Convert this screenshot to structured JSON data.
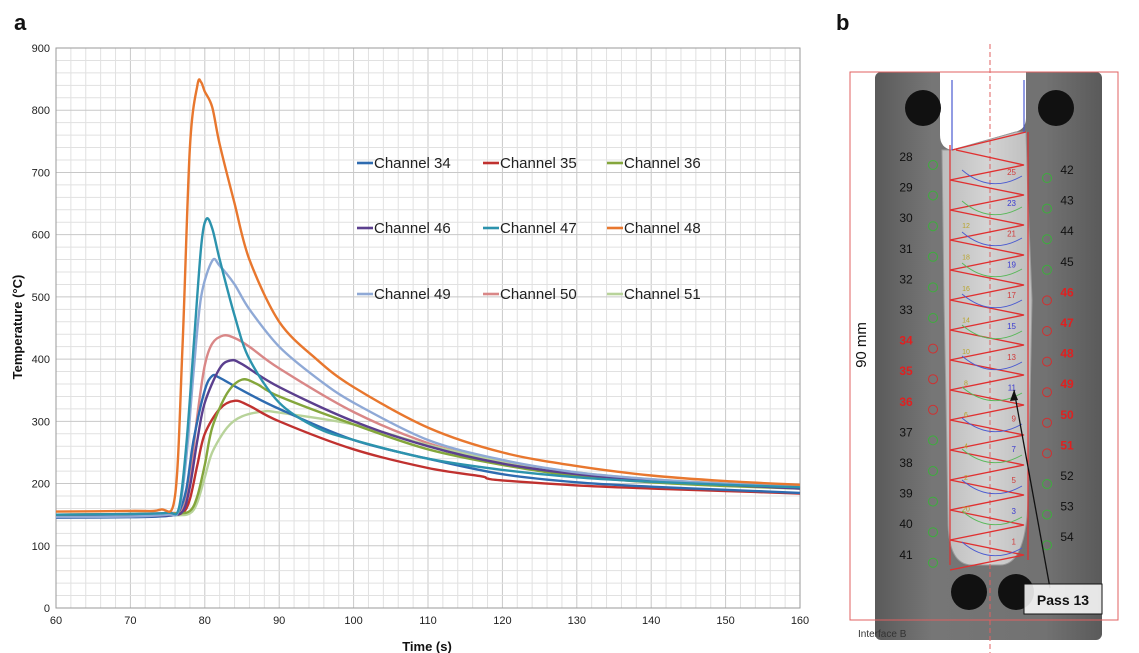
{
  "panel_a_label": "a",
  "panel_b_label": "b",
  "chart_data": {
    "type": "line",
    "xlabel": "Time (s)",
    "ylabel": "Temperature (°C)",
    "xlim": [
      60,
      160
    ],
    "ylim": [
      0,
      900
    ],
    "xticks": [
      60,
      70,
      80,
      90,
      100,
      110,
      120,
      130,
      140,
      150,
      160
    ],
    "yticks": [
      0,
      100,
      200,
      300,
      400,
      500,
      600,
      700,
      800,
      900
    ],
    "grid": true,
    "legend_position": "upper-right",
    "series": [
      {
        "name": "Channel 34",
        "color": "#2e6bb0",
        "peak": 373,
        "t_rise": 76.5,
        "t_peak": 81.0,
        "tail": 185,
        "base": 145,
        "x": [
          60,
          70,
          75,
          76.5,
          77.5,
          78.5,
          80,
          81,
          82,
          85,
          90,
          100,
          110,
          120,
          130,
          140,
          150,
          160
        ],
        "y": [
          145,
          146,
          148,
          155,
          190,
          270,
          350,
          373,
          370,
          350,
          320,
          270,
          240,
          215,
          202,
          195,
          190,
          185
        ]
      },
      {
        "name": "Channel 35",
        "color": "#c0312f",
        "peak": 333,
        "t_rise": 77.5,
        "t_peak": 84.0,
        "tail": 184,
        "base": 148,
        "x": [
          60,
          70,
          75,
          77,
          78,
          79,
          80,
          82,
          84,
          86,
          90,
          100,
          110,
          117,
          118,
          120,
          130,
          140,
          150,
          160
        ],
        "y": [
          148,
          149,
          150,
          153,
          175,
          230,
          280,
          320,
          333,
          325,
          300,
          255,
          225,
          212,
          208,
          205,
          197,
          192,
          188,
          184
        ]
      },
      {
        "name": "Channel 36",
        "color": "#84a63c",
        "peak": 367,
        "t_rise": 78.0,
        "t_peak": 85.0,
        "tail": 192,
        "base": 150,
        "x": [
          60,
          70,
          76,
          78,
          79,
          80,
          81,
          83,
          85,
          87,
          90,
          100,
          110,
          120,
          130,
          140,
          150,
          160
        ],
        "y": [
          150,
          151,
          152,
          156,
          180,
          230,
          290,
          345,
          367,
          360,
          340,
          295,
          255,
          230,
          212,
          202,
          196,
          192
        ]
      },
      {
        "name": "Channel 46",
        "color": "#5b3f8e",
        "peak": 398,
        "t_rise": 77.0,
        "t_peak": 83.5,
        "tail": 192,
        "base": 146,
        "x": [
          60,
          70,
          75,
          77,
          78,
          79,
          80,
          82,
          83.5,
          85,
          90,
          100,
          110,
          120,
          130,
          140,
          150,
          160
        ],
        "y": [
          146,
          147,
          149,
          155,
          195,
          270,
          330,
          385,
          398,
          392,
          355,
          300,
          260,
          232,
          215,
          205,
          198,
          192
        ]
      },
      {
        "name": "Channel 47",
        "color": "#2c93ad",
        "peak": 625,
        "t_rise": 76.5,
        "t_peak": 80.2,
        "tail": 194,
        "base": 150,
        "x": [
          60,
          70,
          75,
          76.5,
          77.5,
          78.5,
          79.5,
          80.2,
          81,
          82,
          84,
          86,
          90,
          95,
          100,
          110,
          120,
          130,
          140,
          150,
          160
        ],
        "y": [
          150,
          151,
          153,
          160,
          260,
          420,
          580,
          625,
          610,
          560,
          470,
          400,
          330,
          290,
          270,
          240,
          222,
          210,
          203,
          198,
          194
        ]
      },
      {
        "name": "Channel 48",
        "color": "#e8772e",
        "peak": 845,
        "t_rise": 76.0,
        "t_peak": 79.5,
        "tail": 198,
        "base": 155,
        "x": [
          60,
          70,
          74,
          76,
          77,
          78,
          79,
          79.5,
          80,
          81,
          82,
          84,
          86,
          90,
          95,
          100,
          110,
          120,
          130,
          140,
          150,
          160
        ],
        "y": [
          155,
          156,
          158,
          180,
          420,
          740,
          840,
          845,
          830,
          805,
          745,
          650,
          560,
          460,
          400,
          355,
          290,
          250,
          228,
          213,
          204,
          198
        ]
      },
      {
        "name": "Channel 49",
        "color": "#8fa9d6",
        "peak": 558,
        "t_rise": 76.5,
        "t_peak": 81.0,
        "tail": 196,
        "base": 146,
        "x": [
          60,
          70,
          75,
          76.5,
          77.5,
          78.5,
          79.5,
          81,
          82,
          84,
          86,
          90,
          95,
          100,
          110,
          120,
          130,
          140,
          150,
          160
        ],
        "y": [
          146,
          147,
          150,
          157,
          240,
          380,
          500,
          558,
          550,
          520,
          480,
          420,
          370,
          330,
          270,
          238,
          218,
          207,
          200,
          196
        ]
      },
      {
        "name": "Channel 50",
        "color": "#d98787",
        "peak": 438,
        "t_rise": 77.0,
        "t_peak": 82.5,
        "tail": 195,
        "base": 150,
        "x": [
          60,
          70,
          75,
          77,
          78,
          79,
          80,
          81,
          82.5,
          84,
          86,
          90,
          100,
          110,
          120,
          130,
          140,
          150,
          160
        ],
        "y": [
          150,
          151,
          153,
          158,
          210,
          310,
          390,
          425,
          438,
          434,
          420,
          385,
          315,
          265,
          235,
          215,
          205,
          199,
          195
        ]
      },
      {
        "name": "Channel 51",
        "color": "#b8d39a",
        "peak": 316,
        "t_rise": 78.5,
        "t_peak": 88.0,
        "tail": 195,
        "base": 147,
        "x": [
          60,
          70,
          76,
          78,
          79,
          80,
          81,
          83,
          85,
          88,
          90,
          100,
          110,
          120,
          130,
          140,
          150,
          160
        ],
        "y": [
          147,
          148,
          149,
          152,
          170,
          210,
          250,
          290,
          308,
          316,
          314,
          295,
          262,
          236,
          218,
          207,
          200,
          195
        ]
      }
    ]
  },
  "photo": {
    "scale_label": "90 mm",
    "pass_label": "Pass 13",
    "interface_label": "Interface B",
    "left_numbers": [
      "28",
      "29",
      "30",
      "31",
      "32",
      "33",
      "34",
      "35",
      "36",
      "37",
      "38",
      "39",
      "40",
      "41"
    ],
    "right_numbers": [
      "42",
      "43",
      "44",
      "45",
      "46",
      "47",
      "48",
      "49",
      "50",
      "51",
      "52",
      "53",
      "54"
    ],
    "highlight_numbers": [
      "34",
      "35",
      "36",
      "46",
      "47",
      "48",
      "49",
      "50",
      "51"
    ],
    "pass_numbers": [
      "25",
      "23",
      "21",
      "19",
      "17",
      "15",
      "13",
      "11",
      "9",
      "7",
      "5",
      "3",
      "1"
    ],
    "bead_numbers": [
      "12",
      "18",
      "16",
      "14",
      "10",
      "8",
      "6",
      "4",
      "2",
      "20"
    ],
    "highlight_color": "#e02020",
    "normal_color": "#111111"
  }
}
